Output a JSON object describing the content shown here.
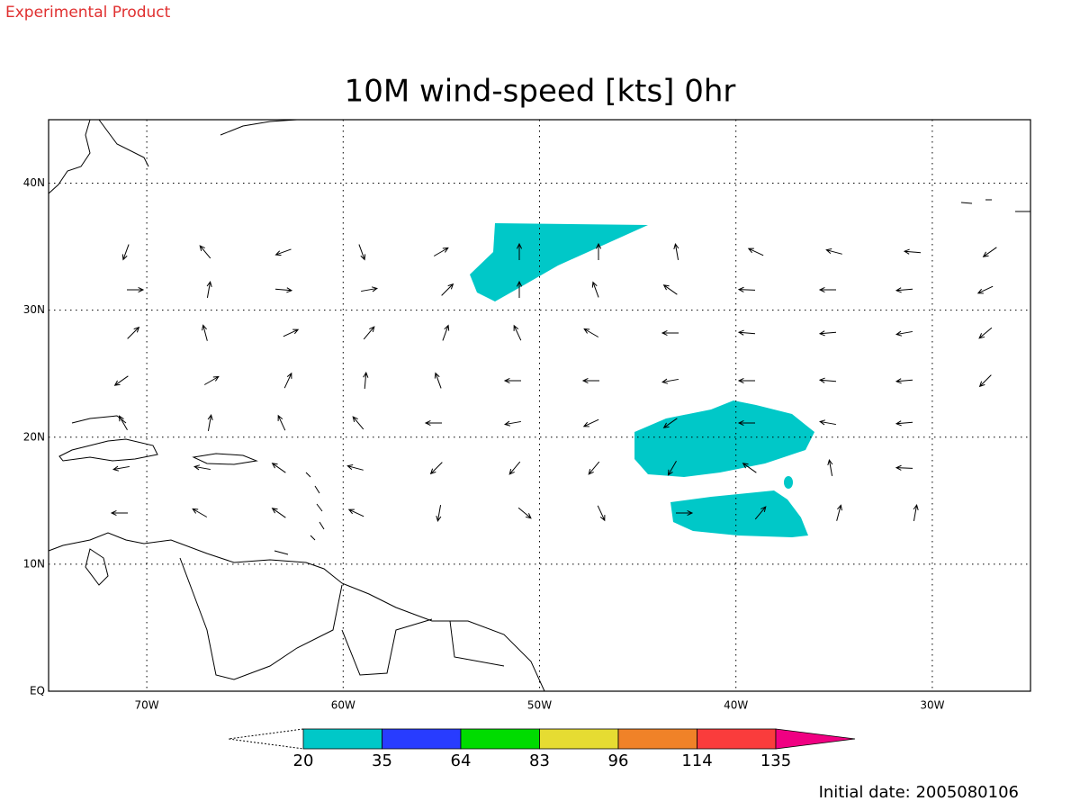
{
  "header": {
    "note": "Experimental Product",
    "title": "10M wind-speed [kts] 0hr"
  },
  "map": {
    "lon_range": [
      -75,
      -25
    ],
    "lat_range": [
      0,
      45
    ],
    "lat_labels": [
      {
        "value": 0,
        "label": "EQ"
      },
      {
        "value": 10,
        "label": "10N"
      },
      {
        "value": 20,
        "label": "20N"
      },
      {
        "value": 30,
        "label": "30N"
      },
      {
        "value": 40,
        "label": "40N"
      }
    ],
    "lon_labels": [
      {
        "value": -70,
        "label": "70W"
      },
      {
        "value": -60,
        "label": "60W"
      },
      {
        "value": -50,
        "label": "50W"
      },
      {
        "value": -40,
        "label": "40W"
      },
      {
        "value": -30,
        "label": "30W"
      }
    ],
    "grid": true
  },
  "colorbar": {
    "levels": [
      20,
      35,
      64,
      83,
      96,
      114,
      135
    ],
    "colors": [
      "#00c8c8",
      "#283cff",
      "#00dc00",
      "#e6dc32",
      "#f08228",
      "#fa3c3c",
      "#f00082"
    ]
  },
  "footer": {
    "initial_date": "Initial date: 2005080106"
  }
}
